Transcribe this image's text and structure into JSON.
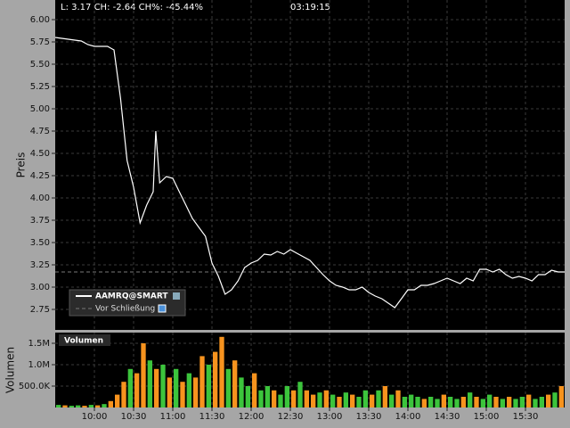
{
  "chart_data": [
    {
      "type": "line",
      "status": "L: 3.17  CH: -2.64  CH%: -45.44%",
      "clock": "03:19:15",
      "y_label": "Preis",
      "x": [
        570,
        575,
        580,
        585,
        590,
        595,
        600,
        605,
        610,
        615,
        620,
        625,
        630,
        635,
        640,
        645,
        647,
        650,
        655,
        660,
        665,
        670,
        675,
        680,
        685,
        690,
        695,
        700,
        705,
        710,
        715,
        720,
        725,
        730,
        735,
        740,
        745,
        750,
        755,
        760,
        765,
        770,
        775,
        780,
        785,
        790,
        795,
        800,
        805,
        810,
        815,
        820,
        825,
        830,
        835,
        840,
        845,
        850,
        855,
        860,
        865,
        870,
        875,
        880,
        885,
        890,
        895,
        900,
        905,
        910,
        915,
        920,
        925,
        930,
        935,
        940,
        945,
        950,
        955,
        960
      ],
      "series": [
        {
          "name": "AAMRQ@SMART",
          "color": "#ffffff",
          "values": [
            5.8,
            5.79,
            5.78,
            5.77,
            5.76,
            5.72,
            5.7,
            5.7,
            5.7,
            5.66,
            5.12,
            4.42,
            4.12,
            3.72,
            3.92,
            4.07,
            4.75,
            4.17,
            4.24,
            4.22,
            4.07,
            3.92,
            3.77,
            3.67,
            3.57,
            3.27,
            3.12,
            2.92,
            2.97,
            3.07,
            3.22,
            3.27,
            3.3,
            3.37,
            3.36,
            3.4,
            3.37,
            3.42,
            3.38,
            3.34,
            3.3,
            3.22,
            3.14,
            3.07,
            3.02,
            3.0,
            2.97,
            2.97,
            3.0,
            2.94,
            2.9,
            2.87,
            2.82,
            2.77,
            2.87,
            2.97,
            2.97,
            3.02,
            3.02,
            3.04,
            3.07,
            3.1,
            3.07,
            3.04,
            3.1,
            3.07,
            3.2,
            3.2,
            3.17,
            3.2,
            3.14,
            3.1,
            3.12,
            3.1,
            3.07,
            3.14,
            3.14,
            3.19,
            3.17,
            3.17
          ]
        }
      ],
      "reference_line": {
        "value": 3.17,
        "label": "Vor Schließung",
        "color": "#777777"
      },
      "xlim": [
        570,
        960
      ],
      "ylim": [
        2.52,
        6.22
      ],
      "yticks": [
        2.75,
        {
          "value": 3,
          "label": "3.00"
        },
        3.25,
        {
          "value": 3.5,
          "label": "3.50"
        },
        3.75,
        {
          "value": 4,
          "label": "4.00"
        },
        4.25,
        {
          "value": 4.5,
          "label": "4.50"
        },
        4.75,
        {
          "value": 5,
          "label": "5.00"
        },
        5.25,
        {
          "value": 5.5,
          "label": "5.50"
        },
        5.75,
        {
          "value": 6,
          "label": "6.00"
        }
      ],
      "grid": true
    },
    {
      "type": "bar",
      "title": "Volumen",
      "y_label": "Volumen",
      "x": [
        570,
        575,
        580,
        585,
        590,
        595,
        600,
        605,
        610,
        615,
        620,
        625,
        630,
        635,
        640,
        645,
        650,
        655,
        660,
        665,
        670,
        675,
        680,
        685,
        690,
        695,
        700,
        705,
        710,
        715,
        720,
        725,
        730,
        735,
        740,
        745,
        750,
        755,
        760,
        765,
        770,
        775,
        780,
        785,
        790,
        795,
        800,
        805,
        810,
        815,
        820,
        825,
        830,
        835,
        840,
        845,
        850,
        855,
        860,
        865,
        870,
        875,
        880,
        885,
        890,
        895,
        900,
        905,
        910,
        915,
        920,
        925,
        930,
        935,
        940,
        945,
        950,
        955
      ],
      "bar_width": 5,
      "values": [
        60000,
        50000,
        40000,
        50000,
        40000,
        60000,
        50000,
        80000,
        150000,
        300000,
        600000,
        900000,
        800000,
        1500000,
        1100000,
        900000,
        1000000,
        700000,
        900000,
        600000,
        800000,
        700000,
        1200000,
        1000000,
        1300000,
        1650000,
        900000,
        1100000,
        700000,
        500000,
        800000,
        400000,
        500000,
        400000,
        300000,
        500000,
        400000,
        600000,
        400000,
        300000,
        350000,
        400000,
        300000,
        250000,
        350000,
        300000,
        250000,
        400000,
        300000,
        400000,
        500000,
        300000,
        400000,
        250000,
        300000,
        250000,
        200000,
        250000,
        200000,
        300000,
        250000,
        200000,
        250000,
        350000,
        250000,
        200000,
        300000,
        250000,
        200000,
        250000,
        200000,
        250000,
        300000,
        200000,
        250000,
        300000,
        350000,
        500000
      ],
      "colors": [
        "#3cc43c",
        "#f7931e",
        "#3cc43c",
        "#3cc43c",
        "#f7931e",
        "#3cc43c",
        "#f7931e",
        "#3cc43c",
        "#f7931e",
        "#f7931e",
        "#f7931e",
        "#3cc43c",
        "#f7931e",
        "#f7931e",
        "#3cc43c",
        "#f7931e",
        "#3cc43c",
        "#f7931e",
        "#3cc43c",
        "#f7931e",
        "#3cc43c",
        "#f7931e",
        "#f7931e",
        "#3cc43c",
        "#f7931e",
        "#f7931e",
        "#3cc43c",
        "#f7931e",
        "#3cc43c",
        "#3cc43c",
        "#f7931e",
        "#3cc43c",
        "#3cc43c",
        "#f7931e",
        "#3cc43c",
        "#3cc43c",
        "#f7931e",
        "#3cc43c",
        "#f7931e",
        "#f7931e",
        "#3cc43c",
        "#f7931e",
        "#3cc43c",
        "#f7931e",
        "#3cc43c",
        "#f7931e",
        "#3cc43c",
        "#3cc43c",
        "#f7931e",
        "#3cc43c",
        "#f7931e",
        "#3cc43c",
        "#f7931e",
        "#3cc43c",
        "#3cc43c",
        "#3cc43c",
        "#f7931e",
        "#3cc43c",
        "#3cc43c",
        "#f7931e",
        "#3cc43c",
        "#3cc43c",
        "#f7931e",
        "#3cc43c",
        "#f7931e",
        "#3cc43c",
        "#3cc43c",
        "#f7931e",
        "#3cc43c",
        "#f7931e",
        "#3cc43c",
        "#3cc43c",
        "#f7931e",
        "#3cc43c",
        "#3cc43c",
        "#f7931e",
        "#3cc43c",
        "#f7931e"
      ],
      "xlim": [
        570,
        960
      ],
      "ylim": [
        0,
        1750000
      ],
      "xticks": [
        {
          "value": 600,
          "label": "10:00"
        },
        {
          "value": 630,
          "label": "10:30"
        },
        {
          "value": 660,
          "label": "11:00"
        },
        {
          "value": 690,
          "label": "11:30"
        },
        {
          "value": 720,
          "label": "12:00"
        },
        {
          "value": 750,
          "label": "12:30"
        },
        {
          "value": 780,
          "label": "13:00"
        },
        {
          "value": 810,
          "label": "13:30"
        },
        {
          "value": 840,
          "label": "14:00"
        },
        {
          "value": 870,
          "label": "14:30"
        },
        {
          "value": 900,
          "label": "15:00"
        },
        {
          "value": 930,
          "label": "15:30"
        }
      ],
      "yticks": [
        {
          "value": 500000,
          "label": "500.0K"
        },
        {
          "value": 1000000,
          "label": "1.0M"
        },
        {
          "value": 1500000,
          "label": "1.5M"
        }
      ],
      "grid": true
    }
  ]
}
